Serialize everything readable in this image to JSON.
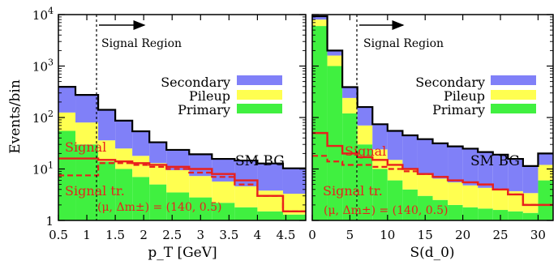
{
  "ylabel": "Events/bin",
  "colors": {
    "secondary": "#8080f8",
    "pileup": "#ffff50",
    "primary": "#40f040",
    "sm_bg": "#000000",
    "signal": "#e8201c"
  },
  "chart_data": [
    {
      "type": "area",
      "subtype": "stacked-step-histogram",
      "xlabel": "p_T [GeV]",
      "xlim": [
        0.5,
        4.85
      ],
      "ylim": [
        1,
        10000
      ],
      "yscale": "log",
      "xticks": [
        "0.5",
        "1",
        "1.5",
        "2",
        "2.5",
        "3",
        "3.5",
        "4",
        "4.5"
      ],
      "yticks": [
        "1",
        "10^1",
        "10^2",
        "10^3",
        "10^4"
      ],
      "grid": false,
      "cut": {
        "x": 1.2,
        "label": "Signal Region"
      },
      "legend": [
        "Secondary",
        "Pileup",
        "Primary"
      ],
      "legend_position": "center-right",
      "labels": {
        "sm_bg": "SM BG",
        "signal": "Signal",
        "signal_truncated": "Signal tr.",
        "model": "(μ, Δm±) = (140, 0.5)"
      },
      "bin_edges": [
        0.5,
        0.8,
        1.2,
        1.5,
        1.8,
        2.1,
        2.4,
        2.8,
        3.2,
        3.6,
        4.0,
        4.45,
        4.85
      ],
      "series": [
        {
          "name": "Primary",
          "values": [
            55,
            30,
            14,
            10,
            7,
            5,
            3.5,
            2.8,
            2.2,
            1.8,
            1.5,
            1.3
          ]
        },
        {
          "name": "Pileup",
          "values": [
            70,
            50,
            22,
            15,
            11,
            8,
            6,
            4.5,
            3.5,
            2.8,
            2.3,
            2.0
          ]
        },
        {
          "name": "Secondary",
          "values": [
            270,
            195,
            105,
            62,
            36,
            20,
            14,
            12,
            10,
            10,
            9,
            7
          ]
        },
        {
          "name": "SM BG",
          "values": [
            395,
            275,
            141,
            87,
            54,
            33,
            23.5,
            19.3,
            15.7,
            14.6,
            12.8,
            10.3
          ]
        },
        {
          "name": "Signal",
          "values": [
            16,
            16,
            15,
            14,
            13,
            12,
            11,
            10,
            8,
            6,
            3,
            1.5
          ]
        },
        {
          "name": "Signal tr.",
          "values": [
            7.5,
            7.5,
            13,
            13,
            12,
            11,
            10,
            8.5,
            7,
            5,
            3,
            1.5
          ]
        }
      ]
    },
    {
      "type": "area",
      "subtype": "stacked-step-histogram",
      "xlabel": "S(d_0)",
      "xlim": [
        0,
        32
      ],
      "ylim": [
        1,
        10000
      ],
      "yscale": "log",
      "xticks": [
        "0",
        "5",
        "10",
        "15",
        "20",
        "25",
        "30"
      ],
      "grid": false,
      "cut": {
        "x": 6,
        "label": "Signal Region"
      },
      "legend": [
        "Secondary",
        "Pileup",
        "Primary"
      ],
      "legend_position": "center-right",
      "labels": {
        "sm_bg": "SM BG",
        "signal": "Signal",
        "signal_truncated": "Signal tr.",
        "model": "(μ, Δm±) = (140, 0.5)"
      },
      "bin_edges": [
        0,
        2,
        4,
        6,
        8,
        10,
        12,
        14,
        16,
        18,
        20,
        22,
        24,
        26,
        28,
        30,
        32
      ],
      "series": [
        {
          "name": "Primary",
          "values": [
            6000,
            1000,
            120,
            30,
            10,
            6,
            4,
            3,
            2.5,
            2,
            1.8,
            1.7,
            1.6,
            1.5,
            1.4,
            6
          ]
        },
        {
          "name": "Pileup",
          "values": [
            2000,
            600,
            120,
            40,
            14,
            9,
            6,
            5,
            4,
            3.5,
            3,
            2.6,
            2.4,
            2.2,
            2.0,
            6
          ]
        },
        {
          "name": "Secondary",
          "values": [
            1300,
            400,
            150,
            90,
            50,
            40,
            35,
            30,
            25,
            22,
            20,
            17,
            15,
            12,
            8,
            8
          ]
        },
        {
          "name": "SM BG",
          "values": [
            9300,
            2000,
            390,
            160,
            74,
            55,
            45,
            38,
            31.5,
            27.5,
            24.8,
            21.3,
            19,
            15.7,
            11.4,
            20
          ]
        },
        {
          "name": "Signal",
          "values": [
            50,
            28,
            20,
            17,
            15,
            12,
            10,
            8,
            7,
            6,
            5.5,
            5,
            4,
            3.2,
            2,
            2
          ]
        },
        {
          "name": "Signal tr.",
          "values": [
            18,
            14,
            12,
            12,
            11,
            10,
            9,
            8,
            7,
            6,
            5.5,
            5,
            4,
            3.2,
            2,
            2
          ]
        }
      ]
    }
  ]
}
